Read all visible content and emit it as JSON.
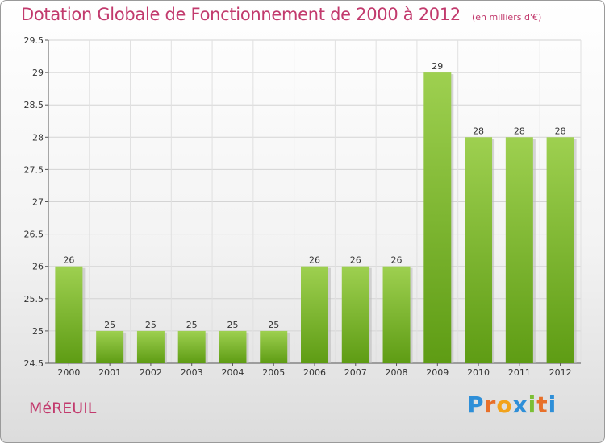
{
  "header": {
    "title": "Dotation Globale de Fonctionnement de 2000 à 2012",
    "subtitle": "(en milliers d'€)"
  },
  "footer": {
    "commune": "MéREUIL",
    "logo_letters": [
      "P",
      "r",
      "o",
      "x",
      "i",
      "t",
      "i"
    ],
    "logo_colors": [
      "#2e8fd8",
      "#e8702a",
      "#f2a31b",
      "#2e8fd8",
      "#7cbf35",
      "#e8702a",
      "#2e8fd8"
    ]
  },
  "chart_data": {
    "type": "bar",
    "title": "Dotation Globale de Fonctionnement de 2000 à 2012",
    "subtitle": "(en milliers d'€)",
    "categories": [
      "2000",
      "2001",
      "2002",
      "2003",
      "2004",
      "2005",
      "2006",
      "2007",
      "2008",
      "2009",
      "2010",
      "2011",
      "2012"
    ],
    "values": [
      26,
      25,
      25,
      25,
      25,
      25,
      26,
      26,
      26,
      29,
      28,
      28,
      28
    ],
    "data_labels": [
      "26",
      "25",
      "25",
      "25",
      "25",
      "25",
      "26",
      "26",
      "26",
      "29",
      "28",
      "28",
      "28"
    ],
    "ylim": [
      24.5,
      29.5
    ],
    "yticks": [
      24.5,
      25,
      25.5,
      26,
      26.5,
      27,
      27.5,
      28,
      28.5,
      29,
      29.5
    ],
    "ytick_labels": [
      "24.5",
      "25",
      "25.5",
      "26",
      "26.5",
      "27",
      "27.5",
      "28",
      "28.5",
      "29",
      "29.5"
    ],
    "grid": true,
    "bar_color_top": "#9ed050",
    "bar_color_bottom": "#5e9c14"
  }
}
